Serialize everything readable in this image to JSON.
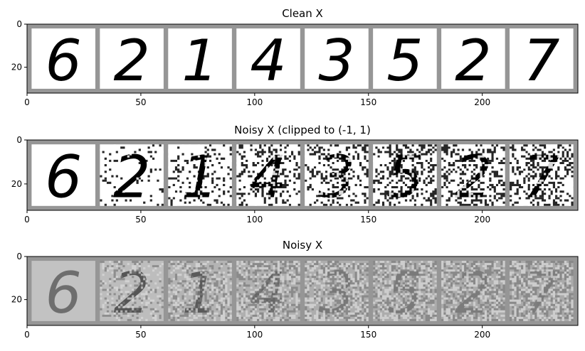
{
  "chart_data": [
    {
      "type": "image-grid",
      "title": "Clean X",
      "xticks": [
        0,
        50,
        100,
        150,
        200
      ],
      "yticks": [
        0,
        20
      ],
      "xlim": [
        0,
        242
      ],
      "ylim": [
        0,
        32
      ],
      "tiles": [
        {
          "digit": "6",
          "background": "#ffffff",
          "ink": "#000000",
          "noise": 0
        },
        {
          "digit": "2",
          "background": "#ffffff",
          "ink": "#000000",
          "noise": 0
        },
        {
          "digit": "1",
          "background": "#ffffff",
          "ink": "#000000",
          "noise": 0
        },
        {
          "digit": "4",
          "background": "#ffffff",
          "ink": "#000000",
          "noise": 0
        },
        {
          "digit": "3",
          "background": "#ffffff",
          "ink": "#000000",
          "noise": 0
        },
        {
          "digit": "5",
          "background": "#ffffff",
          "ink": "#000000",
          "noise": 0
        },
        {
          "digit": "2",
          "background": "#ffffff",
          "ink": "#000000",
          "noise": 0
        },
        {
          "digit": "7",
          "background": "#ffffff",
          "ink": "#000000",
          "noise": 0
        }
      ]
    },
    {
      "type": "image-grid",
      "title": "Noisy X (clipped to (-1, 1)",
      "xticks": [
        0,
        50,
        100,
        150,
        200
      ],
      "yticks": [
        0,
        20
      ],
      "xlim": [
        0,
        242
      ],
      "ylim": [
        0,
        32
      ],
      "tiles": [
        {
          "digit": "6",
          "background": "#ffffff",
          "ink": "#000000",
          "noise": 0.0
        },
        {
          "digit": "2",
          "background": "#ffffff",
          "ink": "#000000",
          "noise": 0.15
        },
        {
          "digit": "1",
          "background": "#ffffff",
          "ink": "#000000",
          "noise": 0.35
        },
        {
          "digit": "4",
          "background": "#ffffff",
          "ink": "#000000",
          "noise": 0.5
        },
        {
          "digit": "3",
          "background": "#ffffff",
          "ink": "#000000",
          "noise": 0.55
        },
        {
          "digit": "5",
          "background": "#ffffff",
          "ink": "#000000",
          "noise": 0.6
        },
        {
          "digit": "2",
          "background": "#ffffff",
          "ink": "#000000",
          "noise": 0.62
        },
        {
          "digit": "7",
          "background": "#ffffff",
          "ink": "#000000",
          "noise": 0.65
        }
      ]
    },
    {
      "type": "image-grid",
      "title": "Noisy X",
      "xticks": [
        0,
        50,
        100,
        150,
        200
      ],
      "yticks": [
        0,
        20
      ],
      "xlim": [
        0,
        242
      ],
      "ylim": [
        0,
        32
      ],
      "tiles": [
        {
          "digit": "6",
          "background": "#c2c2c2",
          "ink": "#6e6e6e",
          "noise": 0.0
        },
        {
          "digit": "2",
          "background": "#bdbdbd",
          "ink": "#555555",
          "noise": 0.3
        },
        {
          "digit": "1",
          "background": "#b4b4b4",
          "ink": "#5a5a5a",
          "noise": 0.5
        },
        {
          "digit": "4",
          "background": "#b0b0b0",
          "ink": "#666666",
          "noise": 0.6
        },
        {
          "digit": "3",
          "background": "#adadad",
          "ink": "#777777",
          "noise": 0.62
        },
        {
          "digit": "5",
          "background": "#acacac",
          "ink": "#7a7a7a",
          "noise": 0.64
        },
        {
          "digit": "2",
          "background": "#ababab",
          "ink": "#7c7c7c",
          "noise": 0.66
        },
        {
          "digit": "7",
          "background": "#aaaaaa",
          "ink": "#7e7e7e",
          "noise": 0.68
        }
      ]
    }
  ],
  "colors": {
    "grid_border": "#969696",
    "axis": "#000000",
    "text": "#000000"
  }
}
